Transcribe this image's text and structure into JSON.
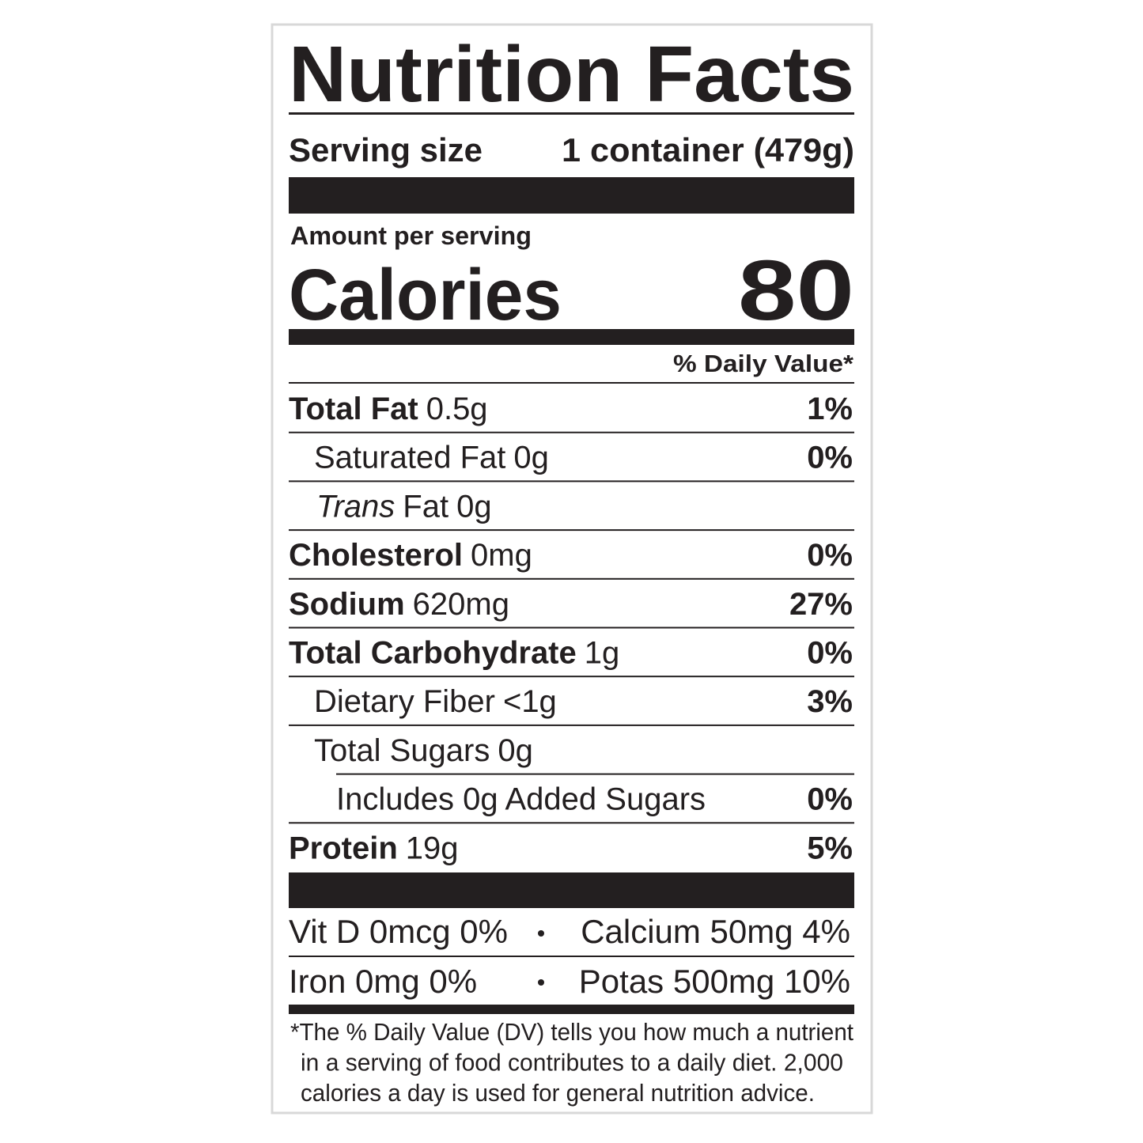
{
  "title": "Nutrition Facts",
  "serving": {
    "label": "Serving size",
    "value": "1 container (479g)"
  },
  "amount_per_serving": "Amount per serving",
  "calories": {
    "label": "Calories",
    "value": 80
  },
  "daily_value_header": "% Daily Value*",
  "nutrients": [
    {
      "name": "Total Fat",
      "amount": "0.5g",
      "dv": "1%"
    },
    {
      "name": "Saturated Fat",
      "amount": "0g",
      "dv": "0%"
    },
    {
      "prefix": "Trans",
      "name": "Fat",
      "amount": "0g"
    },
    {
      "name": "Cholesterol",
      "amount": "0mg",
      "dv": "0%"
    },
    {
      "name": "Sodium",
      "amount": "620mg",
      "dv": "27%"
    },
    {
      "name": "Total Carbohydrate",
      "amount": "1g",
      "dv": "0%"
    },
    {
      "name": "Dietary Fiber",
      "amount": "<1g",
      "dv": "3%"
    },
    {
      "name": "Total Sugars",
      "amount": "0g"
    },
    {
      "name": "Includes 0g Added Sugars",
      "dv": "0%"
    },
    {
      "name": "Protein",
      "amount": "19g",
      "dv": "5%"
    }
  ],
  "vitamins": [
    "Vit D 0mcg 0%",
    "Calcium 50mg 4%",
    "Iron 0mg 0%",
    "Potas 500mg 10%"
  ],
  "footnote": [
    "*The % Daily Value (DV) tells you how much a nutrient",
    "in a serving of food contributes to a daily diet. 2,000",
    "calories a day is used for general nutrition advice."
  ]
}
